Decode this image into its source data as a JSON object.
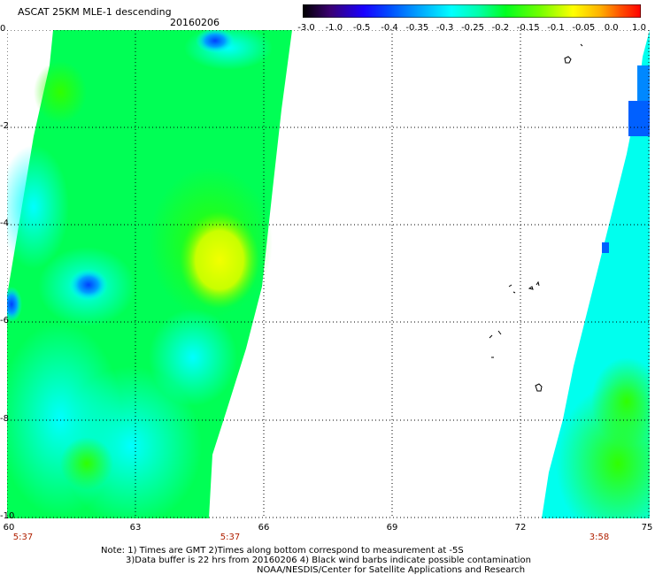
{
  "header": {
    "title": "ASCAT 25KM MLE-1 descending",
    "date": "20160206"
  },
  "colorbar": {
    "labels": [
      "-3.0",
      "-1.0",
      "-0.5",
      "-0.4",
      "-0.35",
      "-0.3",
      "-0.25",
      "-0.2",
      "-0.15",
      "-0.1",
      "-0.05",
      "0.0",
      "1.0"
    ],
    "colors": [
      "#000000",
      "#4b0082",
      "#0000ff",
      "#0066ff",
      "#00b0ff",
      "#00ffff",
      "#00ff99",
      "#00ff00",
      "#80ff00",
      "#ffff00",
      "#ffaa00",
      "#ff4400",
      "#ff0000"
    ]
  },
  "map": {
    "lon_ticks": [
      "60",
      "63",
      "66",
      "69",
      "72",
      "75"
    ],
    "lat_ticks": [
      "0",
      "-2",
      "-4",
      "-6",
      "-8",
      "-10"
    ],
    "lon_range": [
      60,
      75
    ],
    "lat_range": [
      0,
      -10
    ],
    "pass_times": [
      "5:37",
      "5:37",
      "3:58"
    ]
  },
  "notes": {
    "line1": "Note: 1) Times are GMT 2)Times along bottom correspond to measurement at -5S",
    "line2": "3)Data buffer is 22 hrs from 20160206 4) Black wind barbs indicate possible contamination",
    "line3": "NOAA/NESDIS/Center for Satellite Applications and Research"
  }
}
